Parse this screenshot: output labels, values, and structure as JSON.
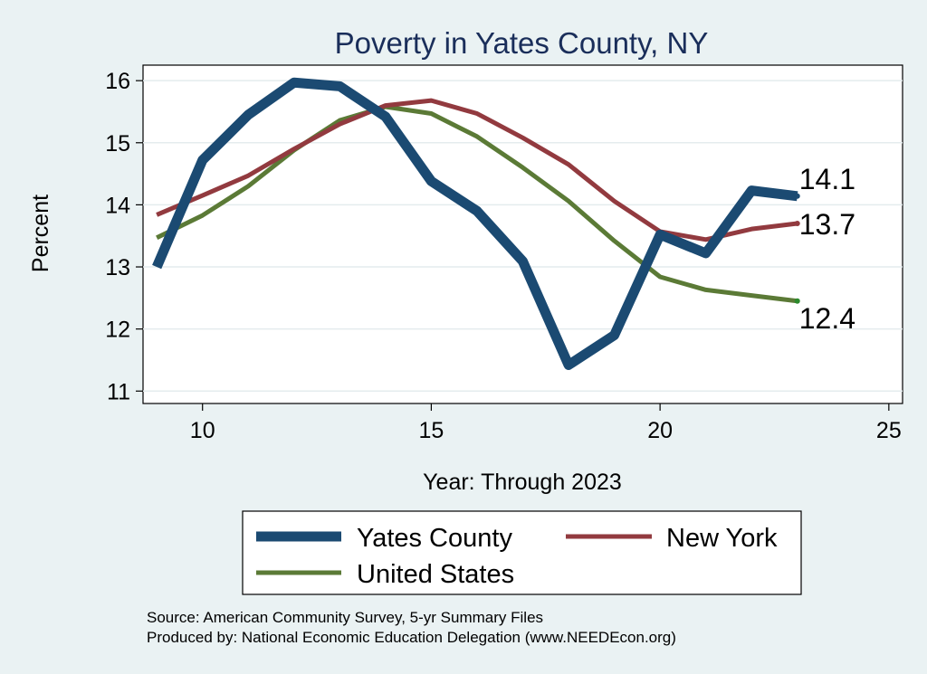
{
  "chart_data": {
    "type": "line",
    "title": "Poverty in Yates County, NY",
    "xlabel": "Year: Through 2023",
    "ylabel": "Percent",
    "xlim": [
      8.7,
      25.3
    ],
    "ylim": [
      10.8,
      16.25
    ],
    "xticks": [
      "10",
      "15",
      "20",
      "25"
    ],
    "yticks": [
      "11",
      "12",
      "13",
      "14",
      "15",
      "16"
    ],
    "grid": true,
    "x": [
      9,
      10,
      11,
      12,
      13,
      14,
      15,
      16,
      17,
      18,
      19,
      20,
      21,
      22,
      23
    ],
    "series": [
      {
        "name": "Yates County",
        "color": "#1b4a72",
        "values": [
          13.0,
          14.72,
          15.45,
          15.97,
          15.91,
          15.42,
          14.38,
          13.9,
          13.09,
          11.42,
          11.9,
          13.52,
          13.22,
          14.23,
          14.14
        ],
        "end_label": "14.1"
      },
      {
        "name": "New York",
        "color": "#923a3f",
        "values": [
          13.84,
          14.15,
          14.47,
          14.9,
          15.3,
          15.6,
          15.68,
          15.47,
          15.08,
          14.65,
          14.06,
          13.57,
          13.44,
          13.61,
          13.7
        ],
        "end_label": "13.7"
      },
      {
        "name": "United States",
        "color": "#5b7a36",
        "values": [
          13.47,
          13.83,
          14.3,
          14.88,
          15.36,
          15.58,
          15.47,
          15.1,
          14.6,
          14.06,
          13.42,
          12.84,
          12.63,
          12.54,
          12.45
        ],
        "end_label": "12.4"
      }
    ],
    "legend": {
      "position": "bottom",
      "entries": [
        "Yates County",
        "New York",
        "United States"
      ]
    },
    "notes": [
      "Source: American Community Survey, 5-yr Summary Files",
      "Produced by: National Economic Education Delegation (www.NEEDEcon.org)"
    ]
  }
}
